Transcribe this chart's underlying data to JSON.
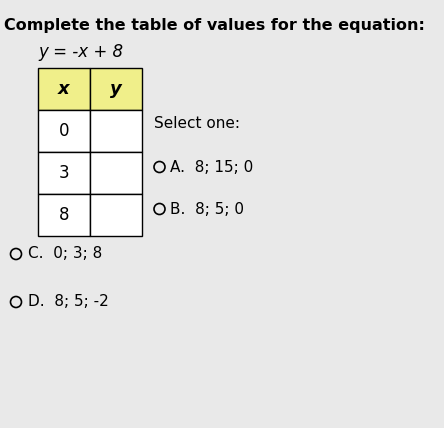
{
  "title": "Complete the table of values for the equation:",
  "equation": "y = -x + 8",
  "table_header": [
    "x",
    "y"
  ],
  "table_rows": [
    "0",
    "3",
    "8"
  ],
  "select_one_label": "Select one:",
  "options_inline": [
    {
      "label": "A.",
      "text": "8; 15; 0"
    },
    {
      "label": "B.",
      "text": "8; 5; 0"
    }
  ],
  "options_below": [
    {
      "label": "C.",
      "text": "0; 3; 8"
    },
    {
      "label": "D.",
      "text": "8; 5; -2"
    }
  ],
  "bg_color": "#e9e9e9",
  "table_header_bg": "#f0ef8a",
  "table_cell_bg": "#ffffff",
  "title_fontsize": 11.5,
  "eq_fontsize": 12,
  "table_fontsize": 12,
  "option_fontsize": 11
}
